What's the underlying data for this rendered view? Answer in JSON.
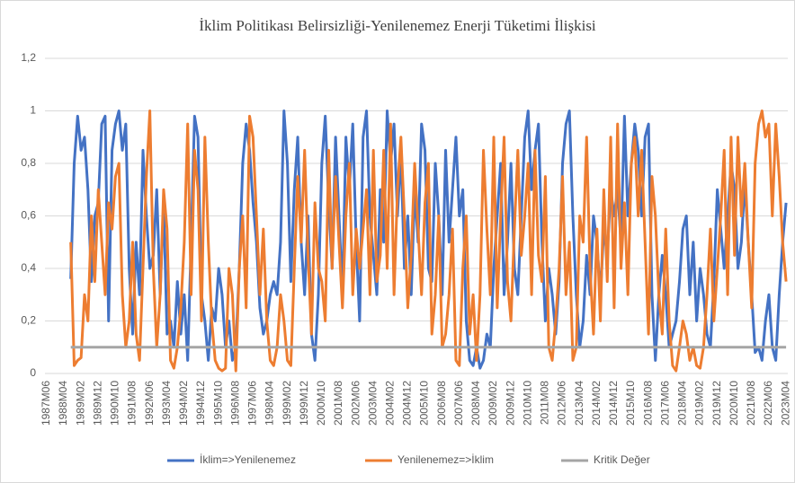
{
  "chart_data": {
    "type": "line",
    "title": "İklim Politikası Belirsizliği-Yenilenemez Enerji Tüketimi İlişkisi",
    "categories": [
      "1987M06",
      null,
      null,
      null,
      null,
      "1988M04",
      null,
      null,
      null,
      null,
      "1989M02",
      null,
      null,
      null,
      null,
      "1989M12",
      null,
      null,
      null,
      null,
      "1990M10",
      null,
      null,
      null,
      null,
      "1991M08",
      null,
      null,
      null,
      null,
      "1992M06",
      null,
      null,
      null,
      null,
      "1993M04",
      null,
      null,
      null,
      null,
      "1994M02",
      null,
      null,
      null,
      null,
      "1994M12",
      null,
      null,
      null,
      null,
      "1995M10",
      null,
      null,
      null,
      null,
      "1996M08",
      null,
      null,
      null,
      null,
      "1997M06",
      null,
      null,
      null,
      null,
      "1998M04",
      null,
      null,
      null,
      null,
      "1999M02",
      null,
      null,
      null,
      null,
      "1999M12",
      null,
      null,
      null,
      null,
      "2000M10",
      null,
      null,
      null,
      null,
      "2001M08",
      null,
      null,
      null,
      null,
      "2002M06",
      null,
      null,
      null,
      null,
      "2003M04",
      null,
      null,
      null,
      null,
      "2004M02",
      null,
      null,
      null,
      null,
      "2004M12",
      null,
      null,
      null,
      null,
      "2005M10",
      null,
      null,
      null,
      null,
      "2006M08",
      null,
      null,
      null,
      null,
      "2007M06",
      null,
      null,
      null,
      null,
      "2008M04",
      null,
      null,
      null,
      null,
      "2009M02",
      null,
      null,
      null,
      null,
      "2009M12",
      null,
      null,
      null,
      null,
      "2010M10",
      null,
      null,
      null,
      null,
      "2011M08",
      null,
      null,
      null,
      null,
      "2012M06",
      null,
      null,
      null,
      null,
      "2013M04",
      null,
      null,
      null,
      null,
      "2014M02",
      null,
      null,
      null,
      null,
      "2014M12",
      null,
      null,
      null,
      null,
      "2015M10",
      null,
      null,
      null,
      null,
      "2016M08",
      null,
      null,
      null,
      null,
      "2017M06",
      null,
      null,
      null,
      null,
      "2018M04",
      null,
      null,
      null,
      null,
      "2019M02",
      null,
      null,
      null,
      null,
      "2019M12",
      null,
      null,
      null,
      null,
      "2020M10",
      null,
      null,
      null,
      null,
      "2021M08",
      null,
      null,
      null,
      null,
      "2022M06",
      null,
      null,
      null,
      null,
      "2023M04"
    ],
    "series": [
      {
        "name": "İklim=>Yenilenemez",
        "color": "#4472c4",
        "values": [
          null,
          null,
          null,
          null,
          null,
          null,
          null,
          0.36,
          0.8,
          0.98,
          0.85,
          0.9,
          0.7,
          0.35,
          0.6,
          0.65,
          0.95,
          0.98,
          0.2,
          0.85,
          0.95,
          1.0,
          0.85,
          0.95,
          0.4,
          0.15,
          0.5,
          0.3,
          0.85,
          0.6,
          0.4,
          0.45,
          0.7,
          0.3,
          0.65,
          0.15,
          0.2,
          0.1,
          0.35,
          0.15,
          0.3,
          0.05,
          0.5,
          0.98,
          0.9,
          0.3,
          0.2,
          0.05,
          0.25,
          0.2,
          0.4,
          0.3,
          0.1,
          0.2,
          0.05,
          0.1,
          0.4,
          0.8,
          0.95,
          0.85,
          0.65,
          0.5,
          0.25,
          0.15,
          0.2,
          0.3,
          0.35,
          0.3,
          0.5,
          1.0,
          0.8,
          0.35,
          0.7,
          0.9,
          0.5,
          0.3,
          0.6,
          0.15,
          0.05,
          0.3,
          0.8,
          0.98,
          0.65,
          0.4,
          0.9,
          0.6,
          0.3,
          0.9,
          0.7,
          0.95,
          0.5,
          0.2,
          0.9,
          1.0,
          0.6,
          0.45,
          0.3,
          0.7,
          0.5,
          1.0,
          0.8,
          0.95,
          0.6,
          0.85,
          0.4,
          0.6,
          0.3,
          0.7,
          0.5,
          0.95,
          0.85,
          0.4,
          0.35,
          0.8,
          0.6,
          0.3,
          0.85,
          0.5,
          0.7,
          0.9,
          0.6,
          0.7,
          0.2,
          0.05,
          0.03,
          0.1,
          0.02,
          0.05,
          0.15,
          0.1,
          0.4,
          0.6,
          0.8,
          0.3,
          0.5,
          0.8,
          0.4,
          0.3,
          0.6,
          0.9,
          1.0,
          0.7,
          0.85,
          0.95,
          0.5,
          0.2,
          0.4,
          0.3,
          0.15,
          0.35,
          0.8,
          0.95,
          1.0,
          0.6,
          0.3,
          0.1,
          0.2,
          0.45,
          0.3,
          0.6,
          0.5,
          0.3,
          0.55,
          0.45,
          0.7,
          0.6,
          0.7,
          0.5,
          0.98,
          0.6,
          0.8,
          0.95,
          0.85,
          0.6,
          0.9,
          0.95,
          0.3,
          0.05,
          0.3,
          0.45,
          0.3,
          0.1,
          0.15,
          0.2,
          0.35,
          0.55,
          0.6,
          0.3,
          0.5,
          0.2,
          0.4,
          0.3,
          0.15,
          0.1,
          0.35,
          0.7,
          0.55,
          0.4,
          0.6,
          0.8,
          0.7,
          0.4,
          0.5,
          0.73,
          0.5,
          0.3,
          0.08,
          0.1,
          0.05,
          0.2,
          0.3,
          0.1,
          0.05,
          0.3,
          0.5,
          0.65
        ]
      },
      {
        "name": "Yenilenemez=>İklim",
        "color": "#ed7d31",
        "values": [
          null,
          null,
          null,
          null,
          null,
          null,
          null,
          0.5,
          0.03,
          0.05,
          0.06,
          0.3,
          0.2,
          0.6,
          0.35,
          0.7,
          0.5,
          0.3,
          0.65,
          0.55,
          0.75,
          0.8,
          0.3,
          0.1,
          0.2,
          0.5,
          0.15,
          0.05,
          0.4,
          0.75,
          1.0,
          0.4,
          0.1,
          0.3,
          0.7,
          0.55,
          0.05,
          0.02,
          0.1,
          0.25,
          0.5,
          0.95,
          0.3,
          0.85,
          0.7,
          0.2,
          0.9,
          0.5,
          0.2,
          0.05,
          0.02,
          0.01,
          0.02,
          0.4,
          0.3,
          0.01,
          0.4,
          0.6,
          0.25,
          0.98,
          0.9,
          0.6,
          0.3,
          0.55,
          0.2,
          0.05,
          0.03,
          0.1,
          0.3,
          0.2,
          0.05,
          0.03,
          0.4,
          0.75,
          0.5,
          0.85,
          0.45,
          0.15,
          0.65,
          0.4,
          0.35,
          0.2,
          0.85,
          0.4,
          0.75,
          0.5,
          0.25,
          0.6,
          0.8,
          0.3,
          0.55,
          0.4,
          0.55,
          0.7,
          0.3,
          0.85,
          0.35,
          0.45,
          0.85,
          0.4,
          0.95,
          0.3,
          0.7,
          0.9,
          0.6,
          0.25,
          0.45,
          0.8,
          0.55,
          0.3,
          0.65,
          0.8,
          0.15,
          0.3,
          0.6,
          0.1,
          0.15,
          0.3,
          0.55,
          0.05,
          0.03,
          0.4,
          0.6,
          0.15,
          0.3,
          0.05,
          0.3,
          0.85,
          0.55,
          0.3,
          0.9,
          0.25,
          0.6,
          0.9,
          0.35,
          0.2,
          0.55,
          0.85,
          0.45,
          0.6,
          0.8,
          0.3,
          0.85,
          0.45,
          0.35,
          0.75,
          0.1,
          0.05,
          0.2,
          0.4,
          0.75,
          0.3,
          0.5,
          0.05,
          0.1,
          0.6,
          0.5,
          0.9,
          0.4,
          0.15,
          0.55,
          0.2,
          0.7,
          0.35,
          0.9,
          0.25,
          0.95,
          0.4,
          0.65,
          0.3,
          0.8,
          0.9,
          0.6,
          0.85,
          0.5,
          0.15,
          0.75,
          0.6,
          0.3,
          0.15,
          0.55,
          0.2,
          0.03,
          0.01,
          0.1,
          0.2,
          0.15,
          0.05,
          0.1,
          0.03,
          0.02,
          0.1,
          0.3,
          0.55,
          0.2,
          0.4,
          0.6,
          0.85,
          0.3,
          0.9,
          0.45,
          0.9,
          0.6,
          0.8,
          0.5,
          0.25,
          0.8,
          0.95,
          1.0,
          0.9,
          0.95,
          0.6,
          0.95,
          0.75,
          0.5,
          0.35
        ]
      },
      {
        "name": "Kritik Değer",
        "color": "#a5a5a5",
        "values": [
          null,
          null,
          null,
          null,
          null,
          null,
          null,
          0.1,
          0.1,
          0.1,
          0.1,
          0.1,
          0.1,
          0.1,
          0.1,
          0.1,
          0.1,
          0.1,
          0.1,
          0.1,
          0.1,
          0.1,
          0.1,
          0.1,
          0.1,
          0.1,
          0.1,
          0.1,
          0.1,
          0.1,
          0.1,
          0.1,
          0.1,
          0.1,
          0.1,
          0.1,
          0.1,
          0.1,
          0.1,
          0.1,
          0.1,
          0.1,
          0.1,
          0.1,
          0.1,
          0.1,
          0.1,
          0.1,
          0.1,
          0.1,
          0.1,
          0.1,
          0.1,
          0.1,
          0.1,
          0.1,
          0.1,
          0.1,
          0.1,
          0.1,
          0.1,
          0.1,
          0.1,
          0.1,
          0.1,
          0.1,
          0.1,
          0.1,
          0.1,
          0.1,
          0.1,
          0.1,
          0.1,
          0.1,
          0.1,
          0.1,
          0.1,
          0.1,
          0.1,
          0.1,
          0.1,
          0.1,
          0.1,
          0.1,
          0.1,
          0.1,
          0.1,
          0.1,
          0.1,
          0.1,
          0.1,
          0.1,
          0.1,
          0.1,
          0.1,
          0.1,
          0.1,
          0.1,
          0.1,
          0.1,
          0.1,
          0.1,
          0.1,
          0.1,
          0.1,
          0.1,
          0.1,
          0.1,
          0.1,
          0.1,
          0.1,
          0.1,
          0.1,
          0.1,
          0.1,
          0.1,
          0.1,
          0.1,
          0.1,
          0.1,
          0.1,
          0.1,
          0.1,
          0.1,
          0.1,
          0.1,
          0.1,
          0.1,
          0.1,
          0.1,
          0.1,
          0.1,
          0.1,
          0.1,
          0.1,
          0.1,
          0.1,
          0.1,
          0.1,
          0.1,
          0.1,
          0.1,
          0.1,
          0.1,
          0.1,
          0.1,
          0.1,
          0.1,
          0.1,
          0.1,
          0.1,
          0.1,
          0.1,
          0.1,
          0.1,
          0.1,
          0.1,
          0.1,
          0.1,
          0.1,
          0.1,
          0.1,
          0.1,
          0.1,
          0.1,
          0.1,
          0.1,
          0.1,
          0.1,
          0.1,
          0.1,
          0.1,
          0.1,
          0.1,
          0.1,
          0.1,
          0.1,
          0.1,
          0.1,
          0.1,
          0.1,
          0.1,
          0.1,
          0.1,
          0.1,
          0.1,
          0.1,
          0.1,
          0.1,
          0.1,
          0.1,
          0.1,
          0.1,
          0.1,
          0.1,
          0.1,
          0.1,
          0.1,
          0.1,
          0.1,
          0.1,
          0.1,
          0.1,
          0.1,
          0.1,
          0.1,
          0.1,
          0.1,
          0.1,
          0.1,
          0.1,
          0.1,
          0.1,
          0.1,
          0.1,
          0.1
        ]
      }
    ],
    "ylim": [
      0,
      1.2
    ],
    "yticks": [
      0,
      {
        "value": 0.2,
        "label": "0,2"
      },
      {
        "value": 0.4,
        "label": "0,4"
      },
      {
        "value": 0.6,
        "label": "0,6"
      },
      {
        "value": 0.8,
        "label": "0,8"
      },
      1,
      {
        "value": 1.2,
        "label": "1,2"
      }
    ],
    "grid": true,
    "legend": "bottom"
  }
}
